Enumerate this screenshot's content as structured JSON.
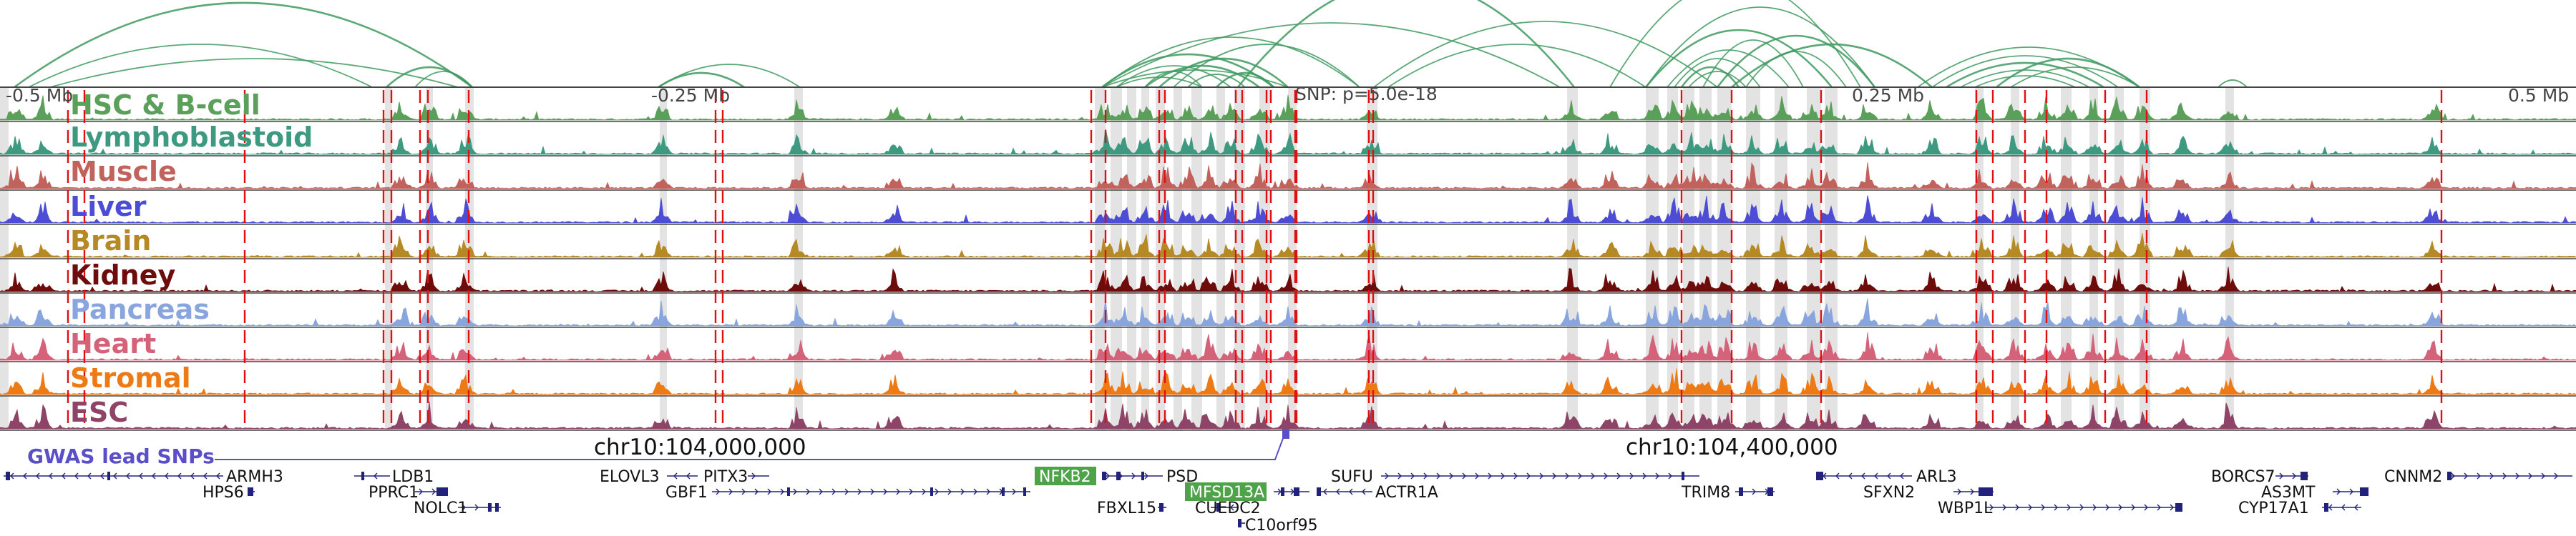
{
  "tracks": [
    {
      "name": "HSC & B-cell",
      "color": "#5aa05a"
    },
    {
      "name": "Lymphoblastoid",
      "color": "#3d9a80"
    },
    {
      "name": "Muscle",
      "color": "#c1625c"
    },
    {
      "name": "Liver",
      "color": "#4c4cd4"
    },
    {
      "name": "Brain",
      "color": "#b58a24"
    },
    {
      "name": "Kidney",
      "color": "#6e0c0c"
    },
    {
      "name": "Pancreas",
      "color": "#88a6dd"
    },
    {
      "name": "Heart",
      "color": "#d4637a"
    },
    {
      "name": "Stromal",
      "color": "#ee7a15"
    },
    {
      "name": "ESC",
      "color": "#8e4466"
    }
  ],
  "axis_labels": {
    "minus_half_mb": "-0.5 Mb",
    "minus_quarter_mb": "-0.25 Mb",
    "snp_pvalue": "SNP: p=5.0e-18",
    "plus_quarter_mb": "0.25 Mb",
    "plus_half_mb": "0.5 Mb"
  },
  "gwas_label": "GWAS lead SNPs",
  "coordinates": {
    "left": "chr10:104,000,000",
    "right": "chr10:104,400,000"
  },
  "genes": {
    "armh3": "ARMH3",
    "hps6": "HPS6",
    "ldb1": "LDB1",
    "pprc1": "PPRC1",
    "nolc1": "NOLC1",
    "elovl3": "ELOVL3",
    "pitx3": "PITX3",
    "gbf1": "GBF1",
    "nfkb2": "NFKB2",
    "psd": "PSD",
    "fbxl15": "FBXL15",
    "mfsd13a": "MFSD13A",
    "cuedc2": "CUEDC2",
    "c10orf95": "C10orf95",
    "sufu": "SUFU",
    "actr1a": "ACTR1A",
    "trim8": "TRIM8",
    "arl3": "ARL3",
    "sfxn2": "SFXN2",
    "wbp1l": "WBP1L",
    "borcs7": "BORCS7",
    "as3mt": "AS3MT",
    "cyp17a1": "CYP17A1",
    "cnnm2": "CNNM2"
  },
  "highlight_color": "#4ea24a",
  "snp_color": "#e01010",
  "strand_color": "#22227a"
}
